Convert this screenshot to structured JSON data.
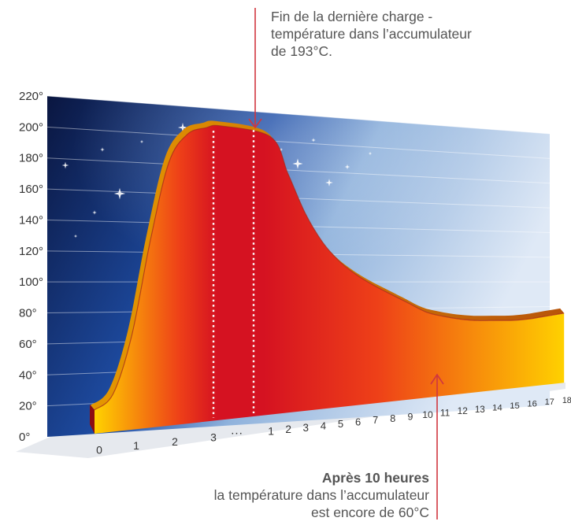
{
  "annotations": {
    "top": [
      "Fin de la dernière charge -",
      "température dans l’accumulateur",
      "de 193°C."
    ],
    "bottom_title": "Après 10 heures",
    "bottom_lines": [
      "la température dans l’accumulateur",
      "est encore de 60°C"
    ]
  },
  "colors": {
    "curve_peak": "#d51221",
    "curve_mid": "#ee4018",
    "curve_end": "#ffd200",
    "sky_top": "#0a1640",
    "sky_mid": "#1f4fa8",
    "sky_light": "#dfe9f6",
    "arrow": "#d0363f"
  },
  "chart_data": {
    "type": "area",
    "title": "",
    "xlabel": "",
    "ylabel": "",
    "y_ticks": [
      "0°",
      "20°",
      "40°",
      "60°",
      "80°",
      "100°",
      "120°",
      "140°",
      "160°",
      "180°",
      "200°",
      "220°"
    ],
    "ylim": [
      0,
      220
    ],
    "grid": true,
    "x_ticks_charge": [
      "0",
      "1",
      "2",
      "3"
    ],
    "x_break": "...",
    "x_ticks_discharge": [
      "1",
      "2",
      "3",
      "4",
      "5",
      "6",
      "7",
      "8",
      "9",
      "10",
      "11",
      "12",
      "13",
      "14",
      "15",
      "16",
      "17",
      "18"
    ],
    "charge_phase": {
      "hours": [
        0,
        0.5,
        1,
        1.5,
        2,
        2.5,
        3,
        3.4
      ],
      "temperature": [
        15,
        24,
        60,
        120,
        170,
        188,
        192,
        193
      ]
    },
    "discharge_phase": {
      "hours": [
        0,
        1,
        2,
        3,
        4,
        5,
        6,
        7,
        8,
        9,
        10,
        11,
        12,
        13,
        14,
        15,
        16,
        17,
        18
      ],
      "temperature": [
        193,
        185,
        160,
        133,
        113,
        99,
        89,
        81,
        74,
        67,
        60,
        56,
        53,
        51,
        50,
        49,
        49,
        50,
        51
      ]
    },
    "peak_annotation_value": 193
  }
}
